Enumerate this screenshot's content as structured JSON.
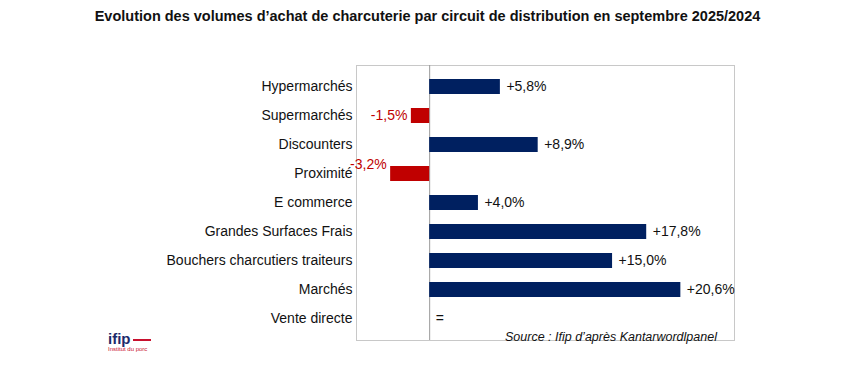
{
  "chart_data": {
    "type": "bar",
    "orientation": "horizontal",
    "title": "Evolution des volumes d’achat de charcuterie par circuit de distribution en septembre 2025/2024",
    "categories": [
      "Hypermarchés",
      "Supermarchés",
      "Discounters",
      "Proximité",
      "E commerce",
      "Grandes Surfaces Frais",
      "Bouchers charcutiers traiteurs",
      "Marchés",
      "Vente directe"
    ],
    "values": [
      5.8,
      -1.5,
      8.9,
      -3.2,
      4.0,
      17.8,
      15.0,
      20.6,
      0
    ],
    "value_labels": [
      "+5,8%",
      "-1,5%",
      "+8,9%",
      "-3,2%",
      "+4,0%",
      "+17,8%",
      "+15,0%",
      "+20,6%",
      "="
    ],
    "colors": [
      "#002060",
      "#c00000",
      "#002060",
      "#c00000",
      "#002060",
      "#002060",
      "#002060",
      "#002060",
      "#002060"
    ],
    "xlim": [
      -6,
      25
    ],
    "xticks": [
      0
    ],
    "tick_labels": "y",
    "data_labels": true,
    "grid": false,
    "source": "Source : Ifip d’après Kantarwordlpanel",
    "logo": {
      "name": "ifip",
      "tagline": "Institut du porc"
    }
  }
}
